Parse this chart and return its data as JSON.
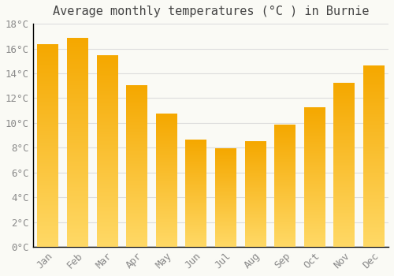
{
  "title": "Average monthly temperatures (°C ) in Burnie",
  "months": [
    "Jan",
    "Feb",
    "Mar",
    "Apr",
    "May",
    "Jun",
    "Jul",
    "Aug",
    "Sep",
    "Oct",
    "Nov",
    "Dec"
  ],
  "values": [
    16.3,
    16.8,
    15.4,
    13.0,
    10.7,
    8.6,
    7.9,
    8.5,
    9.8,
    11.2,
    13.2,
    14.6
  ],
  "bar_color_top": "#F5A800",
  "bar_color_bottom": "#FFD966",
  "ylim": [
    0,
    18
  ],
  "ytick_step": 2,
  "background_color": "#FAFAF5",
  "grid_color": "#DDDDDD",
  "title_fontsize": 11,
  "tick_fontsize": 9,
  "tick_color": "#888888",
  "title_color": "#444444",
  "spine_color": "#000000",
  "bar_width": 0.7
}
